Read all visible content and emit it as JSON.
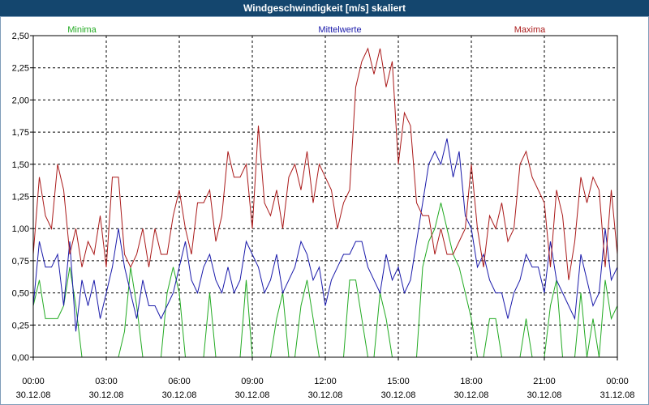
{
  "window": {
    "title": "Windgeschwindigkeit [m/s] skaliert"
  },
  "chart_data": {
    "type": "line",
    "title": "Windgeschwindigkeit [m/s] skaliert",
    "ylim": [
      0,
      2.5
    ],
    "xlim": [
      0,
      96
    ],
    "grid": true,
    "legend": "top",
    "y_ticks": [
      "0,00",
      "0,25",
      "0,50",
      "0,75",
      "1,00",
      "1,25",
      "1,50",
      "1,75",
      "2,00",
      "2,25",
      "2,50"
    ],
    "x_ticks": [
      {
        "time": "00:00",
        "date": "30.12.08"
      },
      {
        "time": "03:00",
        "date": "30.12.08"
      },
      {
        "time": "06:00",
        "date": "30.12.08"
      },
      {
        "time": "09:00",
        "date": "30.12.08"
      },
      {
        "time": "12:00",
        "date": "30.12.08"
      },
      {
        "time": "15:00",
        "date": "30.12.08"
      },
      {
        "time": "18:00",
        "date": "30.12.08"
      },
      {
        "time": "21:00",
        "date": "30.12.08"
      },
      {
        "time": "00:00",
        "date": "31.12.08"
      }
    ],
    "series": [
      {
        "name": "Minima",
        "color": "#22aa22",
        "values": [
          0.4,
          0.6,
          0.3,
          0.3,
          0.3,
          0.4,
          0.7,
          0.4,
          0.0,
          0.0,
          0.0,
          0.0,
          0.0,
          0.0,
          0.0,
          0.2,
          0.7,
          0.4,
          0.0,
          0.0,
          0.0,
          0.0,
          0.5,
          0.7,
          0.5,
          0.0,
          0.0,
          0.0,
          0.0,
          0.5,
          0.0,
          0.0,
          0.0,
          0.0,
          0.0,
          0.6,
          0.0,
          0.0,
          0.0,
          0.0,
          0.3,
          0.5,
          0.0,
          0.0,
          0.4,
          0.6,
          0.3,
          0.0,
          0.0,
          0.0,
          0.0,
          0.0,
          0.6,
          0.6,
          0.3,
          0.0,
          0.0,
          0.5,
          0.3,
          0.0,
          0.0,
          0.0,
          0.0,
          0.0,
          0.7,
          0.9,
          1.0,
          1.2,
          1.0,
          0.8,
          0.7,
          0.5,
          0.3,
          0.0,
          0.0,
          0.3,
          0.3,
          0.0,
          0.0,
          0.0,
          0.0,
          0.3,
          0.0,
          0.0,
          0.0,
          0.4,
          0.6,
          0.0,
          0.0,
          0.0,
          0.5,
          0.0,
          0.3,
          0.0,
          0.6,
          0.3,
          0.4
        ]
      },
      {
        "name": "Mittelwerte",
        "color": "#1a1aaa",
        "values": [
          0.4,
          0.9,
          0.7,
          0.7,
          0.8,
          0.4,
          0.9,
          0.2,
          0.6,
          0.4,
          0.6,
          0.3,
          0.5,
          0.7,
          1.0,
          0.7,
          0.5,
          0.3,
          0.6,
          0.4,
          0.4,
          0.3,
          0.4,
          0.5,
          0.7,
          0.9,
          0.6,
          0.5,
          0.7,
          0.8,
          0.6,
          0.5,
          0.7,
          0.5,
          0.6,
          0.9,
          0.8,
          0.7,
          0.5,
          0.6,
          0.8,
          0.5,
          0.6,
          0.7,
          0.9,
          0.8,
          0.6,
          0.7,
          0.4,
          0.6,
          0.7,
          0.8,
          0.8,
          0.9,
          0.9,
          0.7,
          0.6,
          0.5,
          0.8,
          0.6,
          0.7,
          0.5,
          0.6,
          0.9,
          1.2,
          1.5,
          1.6,
          1.5,
          1.7,
          1.4,
          1.6,
          1.1,
          1.0,
          0.7,
          0.8,
          0.6,
          0.5,
          0.5,
          0.3,
          0.5,
          0.6,
          0.8,
          0.7,
          0.7,
          0.5,
          0.9,
          0.6,
          0.5,
          0.4,
          0.3,
          0.8,
          0.6,
          0.4,
          0.5,
          1.0,
          0.6,
          0.7
        ]
      },
      {
        "name": "Maxima",
        "color": "#aa1a1a",
        "values": [
          0.8,
          1.4,
          1.1,
          1.0,
          1.5,
          1.3,
          0.8,
          1.0,
          0.7,
          0.9,
          0.8,
          1.1,
          0.7,
          1.4,
          1.4,
          0.8,
          0.7,
          0.8,
          1.0,
          0.7,
          1.0,
          0.8,
          0.8,
          1.1,
          1.3,
          1.0,
          0.8,
          1.2,
          1.2,
          1.3,
          0.9,
          1.1,
          1.6,
          1.4,
          1.4,
          1.5,
          1.0,
          1.8,
          1.2,
          1.1,
          1.3,
          1.0,
          1.4,
          1.5,
          1.3,
          1.6,
          1.2,
          1.5,
          1.4,
          1.3,
          1.0,
          1.2,
          1.3,
          2.1,
          2.3,
          2.4,
          2.2,
          2.4,
          2.1,
          2.3,
          1.5,
          1.9,
          1.8,
          1.2,
          1.1,
          1.1,
          0.8,
          1.0,
          0.8,
          0.8,
          0.9,
          1.0,
          1.5,
          1.0,
          0.7,
          1.1,
          1.0,
          1.2,
          0.9,
          1.0,
          1.5,
          1.6,
          1.4,
          1.3,
          1.2,
          0.7,
          1.3,
          1.1,
          0.6,
          0.9,
          1.4,
          1.2,
          1.4,
          1.3,
          0.7,
          1.3,
          0.8
        ]
      }
    ]
  }
}
